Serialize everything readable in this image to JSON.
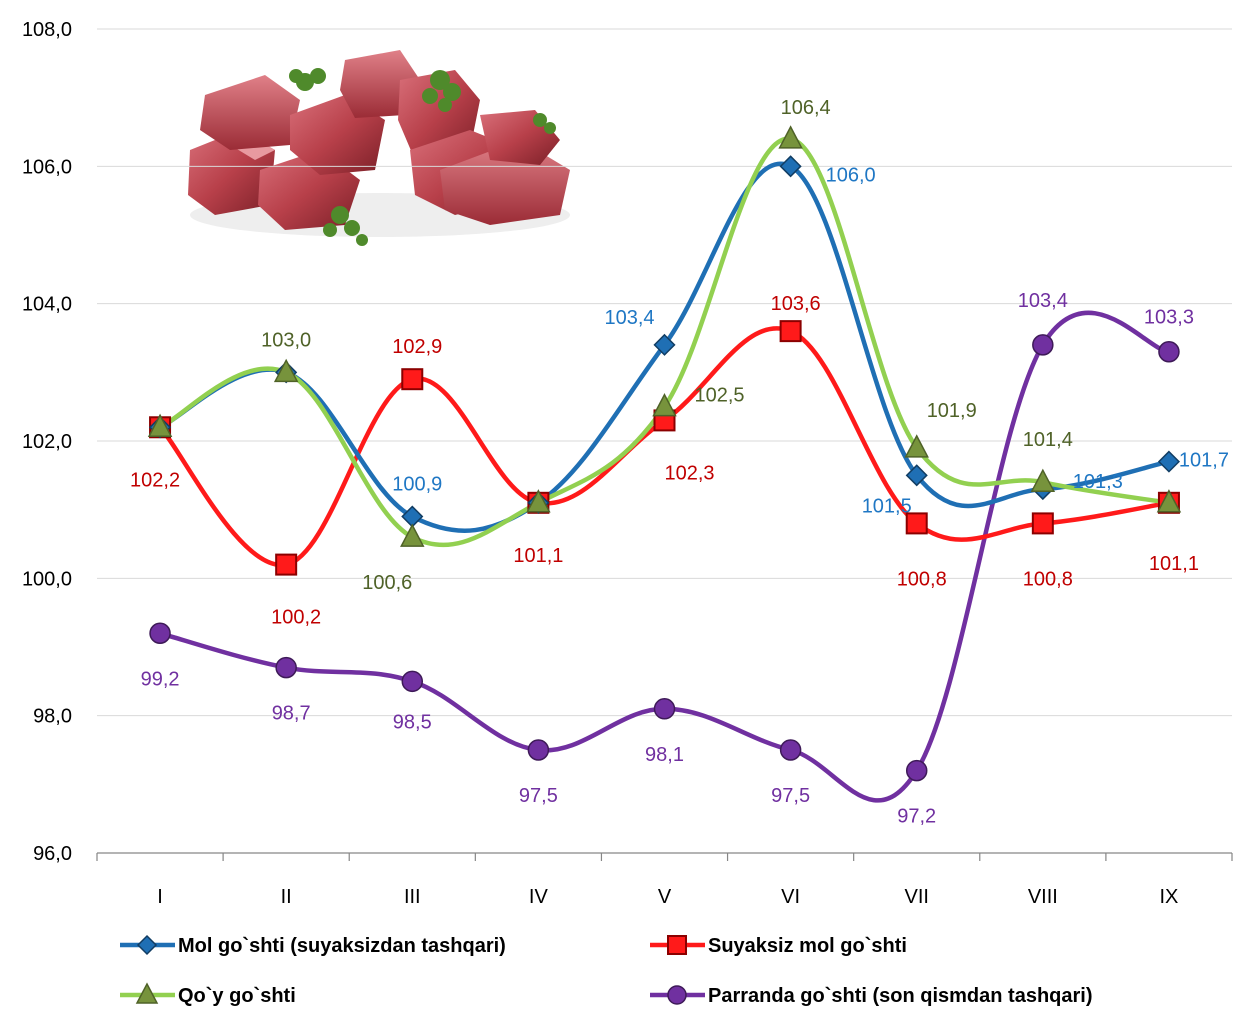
{
  "chart_data": {
    "type": "line",
    "categories": [
      "I",
      "II",
      "III",
      "IV",
      "V",
      "VI",
      "VII",
      "VIII",
      "IX"
    ],
    "ylim": [
      96.0,
      108.0
    ],
    "yticks": [
      "96,0",
      "98,0",
      "100,0",
      "102,0",
      "104,0",
      "106,0",
      "108,0"
    ],
    "grid": true,
    "legend": "bottom",
    "series": [
      {
        "name": "Mol go`shti (suyaksizdan tashqari)",
        "color": "#1f6fb4",
        "label_color": "#1f77c4",
        "marker": "diamond",
        "values": [
          102.2,
          103.0,
          100.9,
          101.1,
          103.4,
          106.0,
          101.5,
          101.3,
          101.7
        ],
        "labels": [
          "",
          "",
          "100,9",
          "",
          "103,4",
          "106,0",
          "101,5",
          "101,3",
          "101,7"
        ]
      },
      {
        "name": "Suyaksiz mol go`shti",
        "color": "#ff1a1a",
        "label_color": "#c00000",
        "marker": "square",
        "values": [
          102.2,
          100.2,
          102.9,
          101.1,
          102.3,
          103.6,
          100.8,
          100.8,
          101.1
        ],
        "labels": [
          "102,2",
          "100,2",
          "102,9",
          "101,1",
          "102,3",
          "103,6",
          "100,8",
          "100,8",
          "101,1"
        ]
      },
      {
        "name": "Qo`y go`shti",
        "color": "#92d050",
        "label_color": "#4f6228",
        "marker": "triangle",
        "values": [
          102.2,
          103.0,
          100.6,
          101.1,
          102.5,
          106.4,
          101.9,
          101.4,
          101.1
        ],
        "labels": [
          "",
          "103,0",
          "100,6",
          "",
          "102,5",
          "106,4",
          "101,9",
          "101,4",
          ""
        ]
      },
      {
        "name": "Parranda go`shti (son qismdan tashqari)",
        "color": "#7030a0",
        "label_color": "#7030a0",
        "marker": "circle",
        "values": [
          99.2,
          98.7,
          98.5,
          97.5,
          98.1,
          97.5,
          97.2,
          103.4,
          103.3
        ],
        "labels": [
          "99,2",
          "98,7",
          "98,5",
          "97,5",
          "98,1",
          "97,5",
          "97,2",
          "103,4",
          "103,3"
        ]
      }
    ]
  }
}
